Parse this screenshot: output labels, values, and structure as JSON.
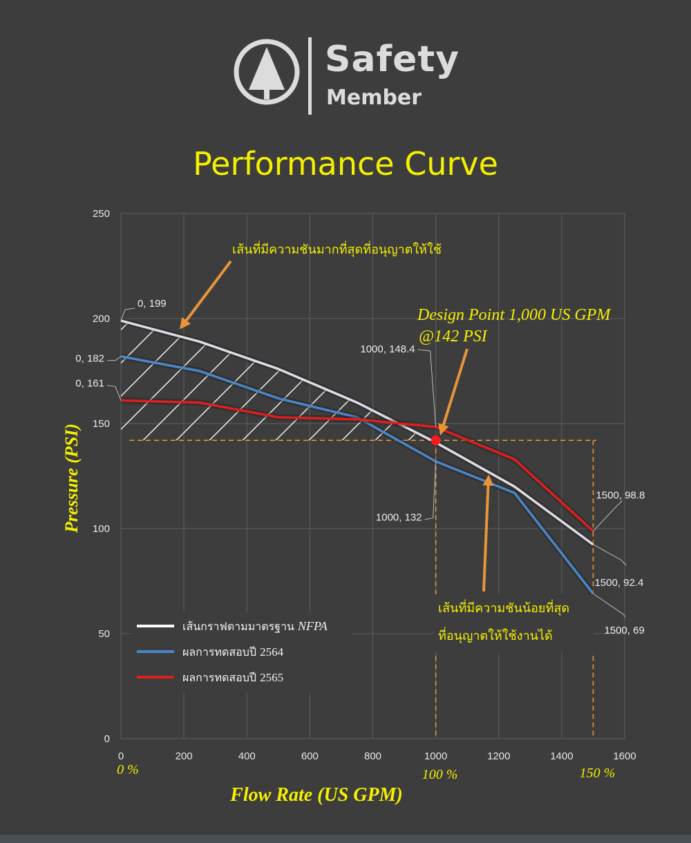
{
  "brand": {
    "name_line1": "Safety",
    "name_line2": "Member"
  },
  "title": "Performance Curve",
  "chart_data": {
    "type": "line",
    "xlabel": "Flow Rate (US GPM)",
    "ylabel": "Pressure (PSI)",
    "xlim": [
      0,
      1600
    ],
    "ylim": [
      0,
      250
    ],
    "xticks": [
      0,
      200,
      400,
      600,
      800,
      1000,
      1200,
      1400,
      1600
    ],
    "yticks": [
      0,
      50,
      100,
      150,
      200,
      250
    ],
    "grid": true,
    "legend_position": "bottom-left",
    "series": [
      {
        "name": "เส้นกราฟตามมาตรฐาน NFPA",
        "legend_main": "เส้นกราฟตามมาตรฐาน",
        "legend_suffix": "NFPA",
        "color": "#e0dbe6",
        "x": [
          0,
          250,
          500,
          750,
          1000,
          1250,
          1500
        ],
        "y": [
          199,
          189,
          176,
          160,
          141,
          120,
          92.4
        ]
      },
      {
        "name": "ผลการทดสอบปี 2564",
        "legend_main": "ผลการทดสอบปี",
        "legend_suffix": "2564",
        "color": "#4a86c8",
        "x": [
          0,
          250,
          500,
          750,
          1000,
          1250,
          1500
        ],
        "y": [
          182,
          175,
          162,
          153,
          132,
          117,
          69
        ]
      },
      {
        "name": "ผลการทดสอบปี 2565",
        "legend_main": "ผลการทดสอบปี",
        "legend_suffix": "2565",
        "color": "#e11d1d",
        "x": [
          0,
          250,
          500,
          750,
          1000,
          1250,
          1500
        ],
        "y": [
          161,
          160,
          153,
          152,
          148.4,
          133,
          98.8
        ]
      }
    ],
    "point_labels": [
      {
        "text": "0, 199",
        "x": 0,
        "y": 199
      },
      {
        "text": "0, 182",
        "x": 0,
        "y": 182
      },
      {
        "text": "0, 161",
        "x": 0,
        "y": 161
      },
      {
        "text": "1000, 148.4",
        "x": 1000,
        "y": 148.4
      },
      {
        "text": "1000, 132",
        "x": 1000,
        "y": 132
      },
      {
        "text": "1500, 98.8",
        "x": 1500,
        "y": 98.8
      },
      {
        "text": "1500, 92.4",
        "x": 1500,
        "y": 92.4
      },
      {
        "text": "1500, 69",
        "x": 1500,
        "y": 69
      }
    ],
    "design_point": {
      "x": 1000,
      "y": 142,
      "color": "#ff1a1a",
      "label_line1": "Design Point 1,000 US GPM",
      "label_line2": "@142 PSI"
    },
    "reference_lines": {
      "pressure": 142,
      "flows": [
        1000,
        1500
      ],
      "color": "#e8953a"
    },
    "percent_labels": [
      {
        "text": "0 %",
        "x": 0
      },
      {
        "text": "100 %",
        "x": 1000
      },
      {
        "text": "150 %",
        "x": 1500
      }
    ],
    "annotations": {
      "max_pressure": "เส้นที่มีความชันมากที่สุดที่อนุญาตให้ใช้",
      "min_pressure_line1": "เส้นที่มีความชันน้อยที่สุด",
      "min_pressure_line2": "ที่อนุญาตให้ใช้งานได้"
    }
  }
}
